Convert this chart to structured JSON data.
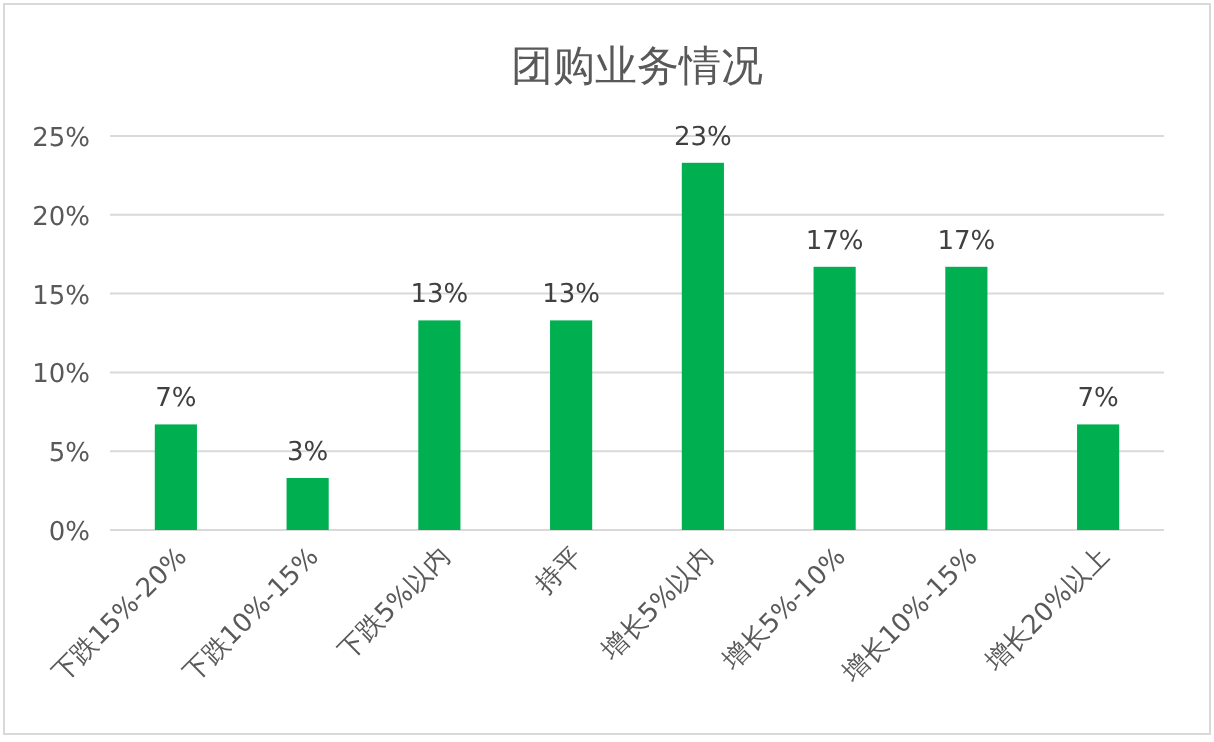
{
  "chart_data": {
    "type": "bar",
    "title": "团购业务情况",
    "categories": [
      "下跌15%-20%",
      "下跌10%-15%",
      "下跌5%以内",
      "持平",
      "增长5%以内",
      "增长5%-10%",
      "增长10%-15%",
      "增长20%以上"
    ],
    "values": [
      6.7,
      3.3,
      13.3,
      13.3,
      23.3,
      16.7,
      16.7,
      6.7
    ],
    "value_labels": [
      "7%",
      "3%",
      "13%",
      "13%",
      "23%",
      "17%",
      "17%",
      "7%"
    ],
    "color": "#00b050",
    "ylim": [
      0,
      25
    ],
    "yticks": [
      {
        "value": 0,
        "label": "0%"
      },
      {
        "value": 5,
        "label": "5%"
      },
      {
        "value": 10,
        "label": "10%"
      },
      {
        "value": 15,
        "label": "15%"
      },
      {
        "value": 20,
        "label": "20%"
      },
      {
        "value": 25,
        "label": "25%"
      }
    ],
    "grid": "y"
  }
}
